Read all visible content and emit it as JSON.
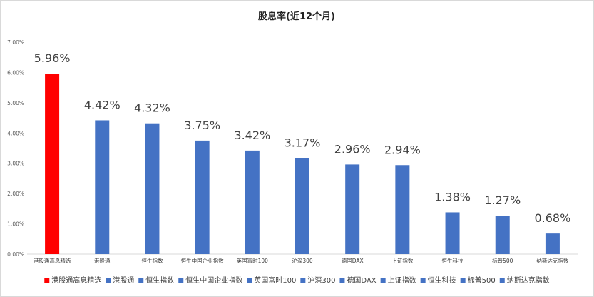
{
  "chart_data": {
    "type": "bar",
    "title": "股息率(近12个月)",
    "categories": [
      "港股通高息精选",
      "港股通",
      "恒生指数",
      "恒生中国企业指数",
      "英国富时100",
      "沪深300",
      "德国DAX",
      "上证指数",
      "恒生科技",
      "标普500",
      "纳斯达克指数"
    ],
    "values": [
      5.96,
      4.42,
      4.32,
      3.75,
      3.42,
      3.17,
      2.96,
      2.94,
      1.38,
      1.27,
      0.68
    ],
    "data_labels": [
      "5.96%",
      "4.42%",
      "4.32%",
      "3.75%",
      "3.42%",
      "3.17%",
      "2.96%",
      "2.94%",
      "1.38%",
      "1.27%",
      "0.68%"
    ],
    "yticks": [
      "0.00%",
      "1.00%",
      "2.00%",
      "3.00%",
      "4.00%",
      "5.00%",
      "6.00%",
      "7.00%"
    ],
    "ylim": [
      0,
      7
    ],
    "grid": false,
    "legend": "bottom",
    "colors": [
      "#ff0000",
      "#4472c4",
      "#4472c4",
      "#4472c4",
      "#4472c4",
      "#4472c4",
      "#4472c4",
      "#4472c4",
      "#4472c4",
      "#4472c4",
      "#4472c4"
    ],
    "xlabel": "",
    "ylabel": ""
  }
}
